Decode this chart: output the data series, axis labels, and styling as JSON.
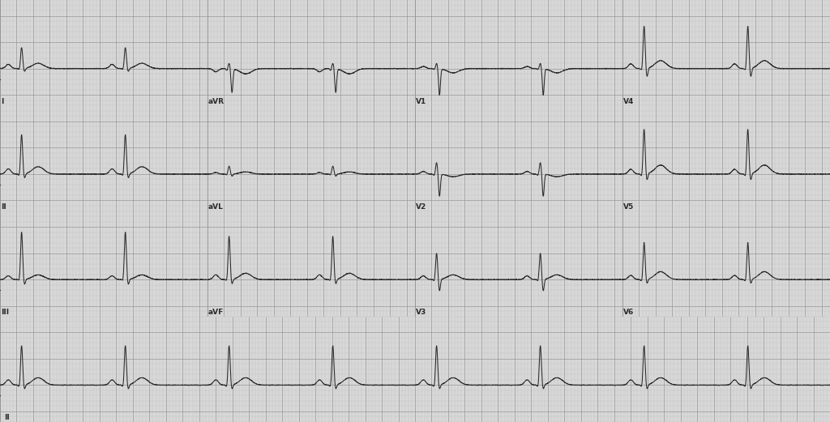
{
  "bg_color": "#d8d8d8",
  "grid_minor_color": "#b8b8b8",
  "grid_major_color": "#909090",
  "ecg_color": "#2a2a2a",
  "line_width": 0.75,
  "fig_width": 10.24,
  "fig_height": 5.21,
  "dpi": 100,
  "heart_rate": 48,
  "sample_rate": 500,
  "lead_rows": [
    [
      "I",
      "aVR",
      "V1",
      "V4"
    ],
    [
      "II",
      "aVL",
      "V2",
      "V5"
    ],
    [
      "III",
      "aVF",
      "V3",
      "V6"
    ]
  ],
  "rhythm_lead": "II",
  "strip_duration": 2.5,
  "rhythm_duration": 10.0,
  "y_min": -0.7,
  "y_max": 1.3,
  "label_fontsize": 6.5,
  "lead_configs": {
    "I": {
      "p": 0.08,
      "q": -0.03,
      "r": 0.4,
      "s": -0.06,
      "t": 0.1
    },
    "II": {
      "p": 0.1,
      "q": -0.05,
      "r": 0.75,
      "s": -0.08,
      "t": 0.14
    },
    "III": {
      "p": 0.07,
      "q": -0.03,
      "r": 0.9,
      "s": -0.1,
      "t": 0.09
    },
    "aVR": {
      "p": -0.06,
      "q": -0.04,
      "r": 0.1,
      "s": -0.45,
      "t": -0.1
    },
    "aVL": {
      "p": 0.03,
      "q": -0.02,
      "r": 0.15,
      "s": -0.04,
      "t": 0.04
    },
    "aVF": {
      "p": 0.09,
      "q": -0.04,
      "r": 0.82,
      "s": -0.09,
      "t": 0.12
    },
    "V1": {
      "p": 0.04,
      "q": -0.02,
      "r": 0.1,
      "s": -0.5,
      "t": -0.08
    },
    "V2": {
      "p": 0.05,
      "q": -0.03,
      "r": 0.22,
      "s": -0.42,
      "t": -0.05
    },
    "V3": {
      "p": 0.07,
      "q": -0.04,
      "r": 0.5,
      "s": -0.22,
      "t": 0.09
    },
    "V4": {
      "p": 0.09,
      "q": -0.05,
      "r": 0.8,
      "s": -0.16,
      "t": 0.15
    },
    "V5": {
      "p": 0.09,
      "q": -0.06,
      "r": 0.85,
      "s": -0.12,
      "t": 0.17
    },
    "V6": {
      "p": 0.08,
      "q": -0.05,
      "r": 0.7,
      "s": -0.08,
      "t": 0.15
    }
  }
}
